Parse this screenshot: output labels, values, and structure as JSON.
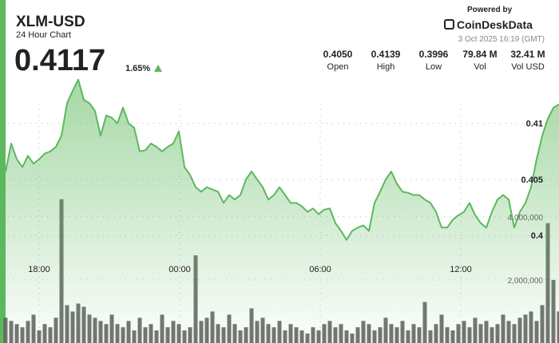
{
  "header": {
    "powered_by": "Powered by",
    "brand": "CoinDeskData",
    "timestamp": "3 Oct 2025 16:19 (GMT)",
    "price": 0.4117,
    "change": {
      "value": 1.65,
      "label": "1.65%"
    },
    "stats": [
      {
        "name": "Open",
        "value": 0.405,
        "label": "0.4050"
      },
      {
        "name": "High",
        "value": 0.4139,
        "label": "0.4139"
      },
      {
        "name": "Low",
        "value": 0.3996,
        "label": "0.3996"
      },
      {
        "name": "Vol",
        "value": 79840000,
        "label": "79.84 M"
      },
      {
        "name": "Vol USD",
        "value": 32410000,
        "label": "32.41 M"
      }
    ]
  },
  "chart_data": {
    "type": "area",
    "title": "XLM-USD",
    "subtitle": "24 Hour Chart",
    "grid": true,
    "xlim": [
      0,
      99
    ],
    "xticks": [
      {
        "value": 6,
        "label": "18:00"
      },
      {
        "value": 31.14,
        "label": "00:00"
      },
      {
        "value": 56.29,
        "label": "06:00"
      },
      {
        "value": 81.43,
        "label": "12:00"
      }
    ],
    "ylim": [
      0.3904,
      0.4146
    ],
    "yticks": [
      0.4,
      0.405,
      0.41
    ],
    "y2lim": [
      0,
      8600000
    ],
    "y2ticks": [
      {
        "value": 2000000,
        "label": "2,000,000"
      },
      {
        "value": 4000000,
        "label": "4,000,000"
      }
    ],
    "series": [
      {
        "type": "area",
        "color": "#5cb85c",
        "values": [
          0.4057,
          0.4082,
          0.4068,
          0.4061,
          0.4071,
          0.4064,
          0.4068,
          0.4073,
          0.4075,
          0.4079,
          0.4089,
          0.4118,
          0.4129,
          0.4139,
          0.4121,
          0.4118,
          0.4111,
          0.4089,
          0.4107,
          0.4105,
          0.41,
          0.4114,
          0.41,
          0.4096,
          0.4075,
          0.4076,
          0.4082,
          0.4079,
          0.4075,
          0.4079,
          0.4082,
          0.4093,
          0.4061,
          0.4054,
          0.4043,
          0.4039,
          0.4043,
          0.4041,
          0.4039,
          0.4029,
          0.4036,
          0.4032,
          0.4036,
          0.405,
          0.4057,
          0.405,
          0.4043,
          0.4032,
          0.4036,
          0.4043,
          0.4036,
          0.4029,
          0.4029,
          0.4026,
          0.4021,
          0.4024,
          0.4019,
          0.4023,
          0.4024,
          0.4011,
          0.4004,
          0.3996,
          0.4004,
          0.4007,
          0.4009,
          0.4004,
          0.4029,
          0.4039,
          0.405,
          0.4057,
          0.4046,
          0.4039,
          0.4038,
          0.4036,
          0.4036,
          0.4032,
          0.4029,
          0.4021,
          0.4007,
          0.4007,
          0.4014,
          0.4018,
          0.4021,
          0.4029,
          0.4018,
          0.4011,
          0.4007,
          0.4021,
          0.4032,
          0.4036,
          0.4032,
          0.4007,
          0.4021,
          0.4029,
          0.4043,
          0.4068,
          0.4089,
          0.4104,
          0.4114,
          0.4117
        ]
      },
      {
        "type": "bar",
        "axis": "y2",
        "color": "#5a5a5a",
        "values": [
          800000,
          700000,
          600000,
          500000,
          700000,
          900000,
          400000,
          600000,
          500000,
          800000,
          4560000,
          1200000,
          1000000,
          1250000,
          1150000,
          900000,
          800000,
          700000,
          600000,
          900000,
          600000,
          500000,
          700000,
          400000,
          800000,
          500000,
          600000,
          400000,
          900000,
          500000,
          700000,
          600000,
          400000,
          500000,
          2780000,
          700000,
          800000,
          1000000,
          600000,
          500000,
          900000,
          600000,
          400000,
          500000,
          1100000,
          700000,
          800000,
          600000,
          500000,
          700000,
          400000,
          600000,
          500000,
          400000,
          300000,
          500000,
          400000,
          600000,
          700000,
          500000,
          600000,
          400000,
          300000,
          500000,
          700000,
          600000,
          400000,
          500000,
          800000,
          600000,
          500000,
          700000,
          400000,
          600000,
          500000,
          1300000,
          400000,
          600000,
          900000,
          500000,
          400000,
          600000,
          700000,
          500000,
          800000,
          600000,
          700000,
          500000,
          600000,
          900000,
          700000,
          600000,
          800000,
          900000,
          1000000,
          700000,
          1200000,
          3800000,
          2000000,
          1000000
        ]
      }
    ]
  }
}
